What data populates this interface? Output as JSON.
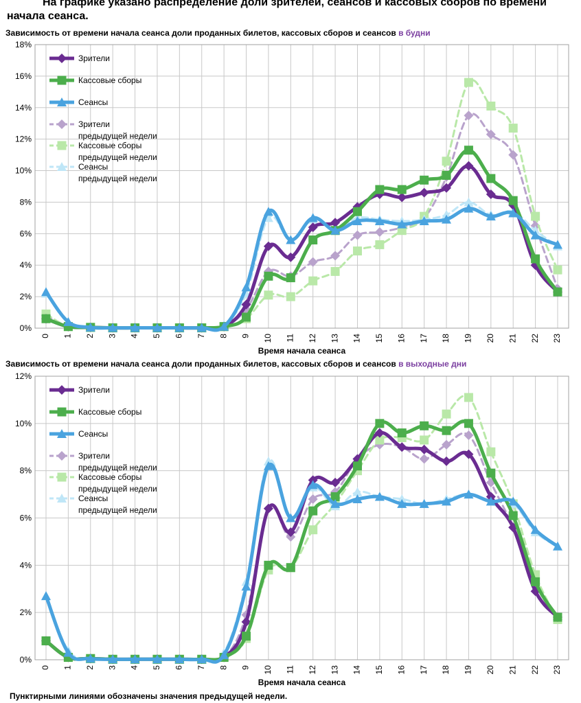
{
  "page_title": "На графике указано распределение доли зрителей, сеансов и кассовых сборов по времени начала сеанса.",
  "footnote": "Пунктирными линиями обозначены значения предыдущей недели.",
  "colors": {
    "viewers": "#6a2c91",
    "revenue": "#4cae4c",
    "sessions": "#4aa3df",
    "viewers_prev": "#b9a3cc",
    "revenue_prev": "#b9e8a8",
    "sessions_prev": "#bfe6f7"
  },
  "chart_data": [
    {
      "type": "line",
      "title_prefix": "Зависимость от времени начала сеанса доли проданных билетов, кассовых сборов и сеансов",
      "title_accent": "в будни",
      "xlabel": "Время начала сеанса",
      "ylabel": "",
      "ylim": [
        0,
        18
      ],
      "yticks": [
        "0%",
        "2%",
        "4%",
        "6%",
        "8%",
        "10%",
        "12%",
        "14%",
        "16%",
        "18%"
      ],
      "categories": [
        "0",
        "1",
        "2",
        "3",
        "4",
        "5",
        "6",
        "7",
        "8",
        "9",
        "10",
        "11",
        "12",
        "13",
        "14",
        "15",
        "16",
        "17",
        "18",
        "19",
        "20",
        "21",
        "22",
        "23"
      ],
      "series": [
        {
          "key": "viewers_prev",
          "name": "Зрители",
          "name2": "предыдущей недели",
          "dashed": true,
          "marker": "diamond",
          "values": [
            0.8,
            0.1,
            0.05,
            0.02,
            0.02,
            0.02,
            0.02,
            0.02,
            0.1,
            1.2,
            3.6,
            3.3,
            4.2,
            4.6,
            5.9,
            6.1,
            6.4,
            7.0,
            9.6,
            13.5,
            12.3,
            11.0,
            6.5,
            2.5
          ]
        },
        {
          "key": "revenue_prev",
          "name": "Кассовые сборы",
          "name2": "предыдущей недели",
          "dashed": true,
          "marker": "square",
          "values": [
            0.9,
            0.1,
            0.05,
            0.02,
            0.02,
            0.02,
            0.02,
            0.02,
            0.1,
            0.6,
            2.1,
            2.0,
            3.0,
            3.6,
            4.9,
            5.3,
            6.2,
            7.1,
            10.6,
            15.6,
            14.1,
            12.7,
            7.1,
            3.7
          ]
        },
        {
          "key": "sessions_prev",
          "name": "Сеансы",
          "name2": "предыдущей недели",
          "dashed": true,
          "marker": "triangle",
          "values": [
            2.2,
            0.4,
            0.05,
            0.02,
            0.02,
            0.02,
            0.02,
            0.02,
            0.2,
            2.2,
            7.0,
            5.6,
            6.9,
            6.3,
            7.0,
            6.9,
            6.8,
            6.9,
            7.2,
            8.0,
            7.2,
            7.4,
            6.2,
            5.2
          ]
        },
        {
          "key": "viewers",
          "name": "Зрители",
          "name2": "",
          "dashed": false,
          "marker": "diamond",
          "values": [
            0.6,
            0.1,
            0.05,
            0.02,
            0.02,
            0.02,
            0.02,
            0.02,
            0.1,
            1.5,
            5.2,
            4.5,
            6.4,
            6.7,
            7.7,
            8.5,
            8.3,
            8.6,
            8.9,
            10.3,
            8.5,
            7.8,
            4.0,
            2.3
          ]
        },
        {
          "key": "revenue",
          "name": "Кассовые сборы",
          "name2": "",
          "dashed": false,
          "marker": "square",
          "values": [
            0.6,
            0.1,
            0.05,
            0.02,
            0.02,
            0.02,
            0.02,
            0.02,
            0.1,
            0.7,
            3.3,
            3.2,
            5.6,
            6.2,
            7.4,
            8.8,
            8.8,
            9.4,
            9.7,
            11.3,
            9.5,
            8.1,
            4.4,
            2.3
          ]
        },
        {
          "key": "sessions",
          "name": "Сеансы",
          "name2": "",
          "dashed": false,
          "marker": "triangle",
          "values": [
            2.3,
            0.4,
            0.05,
            0.02,
            0.02,
            0.02,
            0.02,
            0.02,
            0.1,
            2.6,
            7.4,
            5.6,
            7.0,
            6.2,
            6.8,
            6.8,
            6.6,
            6.8,
            6.9,
            7.6,
            7.1,
            7.3,
            5.9,
            5.3
          ]
        }
      ]
    },
    {
      "type": "line",
      "title_prefix": "Зависимость от времени начала сеанса доли проданных билетов, кассовых сборов и сеансов",
      "title_accent": "в выходные дни",
      "xlabel": "Время начала сеанса",
      "ylabel": "",
      "ylim": [
        0,
        12
      ],
      "yticks": [
        "0%",
        "2%",
        "4%",
        "6%",
        "8%",
        "10%",
        "12%"
      ],
      "categories": [
        "0",
        "1",
        "2",
        "3",
        "4",
        "5",
        "6",
        "7",
        "8",
        "9",
        "10",
        "11",
        "12",
        "13",
        "14",
        "15",
        "16",
        "17",
        "18",
        "19",
        "20",
        "21",
        "22",
        "23"
      ],
      "series": [
        {
          "key": "viewers_prev",
          "name": "Зрители",
          "name2": "предыдущей недели",
          "dashed": true,
          "marker": "diamond",
          "values": [
            0.8,
            0.1,
            0.05,
            0.02,
            0.02,
            0.02,
            0.02,
            0.02,
            0.1,
            1.9,
            6.4,
            5.2,
            6.8,
            7.1,
            8.5,
            9.1,
            9.0,
            8.5,
            9.1,
            9.5,
            7.5,
            5.6,
            3.2,
            1.7
          ]
        },
        {
          "key": "revenue_prev",
          "name": "Кассовые сборы",
          "name2": "предыдущей недели",
          "dashed": true,
          "marker": "square",
          "values": [
            0.8,
            0.1,
            0.05,
            0.02,
            0.02,
            0.02,
            0.02,
            0.02,
            0.1,
            0.9,
            3.8,
            3.9,
            5.5,
            6.6,
            8.0,
            9.3,
            9.4,
            9.3,
            10.4,
            11.1,
            8.8,
            6.6,
            3.6,
            1.7
          ]
        },
        {
          "key": "sessions_prev",
          "name": "Сеансы",
          "name2": "предыдущей недели",
          "dashed": true,
          "marker": "triangle",
          "values": [
            2.7,
            0.4,
            0.05,
            0.02,
            0.02,
            0.02,
            0.02,
            0.02,
            0.3,
            3.3,
            8.4,
            6.0,
            7.3,
            6.5,
            7.1,
            6.9,
            6.8,
            6.6,
            6.8,
            7.0,
            6.7,
            6.6,
            5.4,
            4.8
          ]
        },
        {
          "key": "viewers",
          "name": "Зрители",
          "name2": "",
          "dashed": false,
          "marker": "diamond",
          "values": [
            0.8,
            0.1,
            0.05,
            0.02,
            0.02,
            0.02,
            0.02,
            0.02,
            0.1,
            1.6,
            6.4,
            5.4,
            7.6,
            7.5,
            8.5,
            9.6,
            9.0,
            8.9,
            8.4,
            8.7,
            6.9,
            5.6,
            2.9,
            1.8
          ]
        },
        {
          "key": "revenue",
          "name": "Кассовые сборы",
          "name2": "",
          "dashed": false,
          "marker": "square",
          "values": [
            0.8,
            0.1,
            0.05,
            0.02,
            0.02,
            0.02,
            0.02,
            0.02,
            0.1,
            1.0,
            4.0,
            3.9,
            6.3,
            6.9,
            8.2,
            10.0,
            9.6,
            9.9,
            9.7,
            10.0,
            7.9,
            6.1,
            3.3,
            1.8
          ]
        },
        {
          "key": "sessions",
          "name": "Сеансы",
          "name2": "",
          "dashed": false,
          "marker": "triangle",
          "values": [
            2.7,
            0.3,
            0.05,
            0.02,
            0.02,
            0.02,
            0.02,
            0.02,
            0.2,
            3.1,
            8.2,
            6.0,
            7.4,
            6.6,
            6.8,
            6.9,
            6.6,
            6.6,
            6.7,
            7.0,
            6.7,
            6.7,
            5.5,
            4.8
          ]
        }
      ]
    }
  ]
}
